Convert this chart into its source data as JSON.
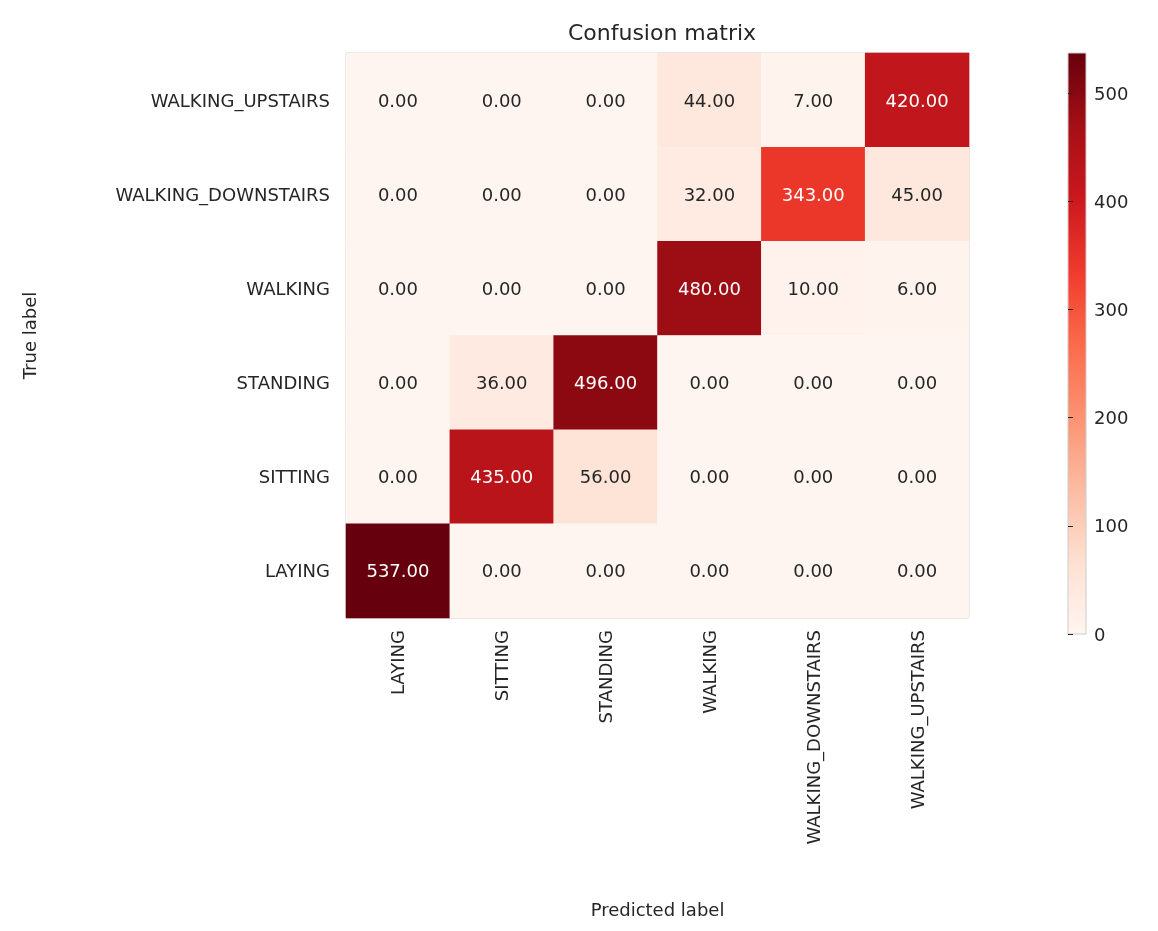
{
  "chart_data": {
    "type": "heatmap",
    "title": "Confusion matrix",
    "xlabel": "Predicted label",
    "ylabel": "True label",
    "categories": [
      "LAYING",
      "SITTING",
      "STANDING",
      "WALKING",
      "WALKING_DOWNSTAIRS",
      "WALKING_UPSTAIRS"
    ],
    "y_categories": [
      "WALKING_UPSTAIRS",
      "WALKING_DOWNSTAIRS",
      "WALKING",
      "STANDING",
      "SITTING",
      "LAYING"
    ],
    "cells": [
      [
        0,
        0,
        0,
        44,
        7,
        420
      ],
      [
        0,
        0,
        0,
        32,
        343,
        45
      ],
      [
        0,
        0,
        0,
        480,
        10,
        6
      ],
      [
        0,
        36,
        496,
        0,
        0,
        0
      ],
      [
        0,
        435,
        56,
        0,
        0,
        0
      ],
      [
        537,
        0,
        0,
        0,
        0,
        0
      ]
    ],
    "cell_labels": [
      [
        "0.00",
        "0.00",
        "0.00",
        "44.00",
        "7.00",
        "420.00"
      ],
      [
        "0.00",
        "0.00",
        "0.00",
        "32.00",
        "343.00",
        "45.00"
      ],
      [
        "0.00",
        "0.00",
        "0.00",
        "480.00",
        "10.00",
        "6.00"
      ],
      [
        "0.00",
        "36.00",
        "496.00",
        "0.00",
        "0.00",
        "0.00"
      ],
      [
        "0.00",
        "435.00",
        "56.00",
        "0.00",
        "0.00",
        "0.00"
      ],
      [
        "537.00",
        "0.00",
        "0.00",
        "0.00",
        "0.00",
        "0.00"
      ]
    ],
    "clim": [
      0,
      537
    ],
    "cticks": [
      0,
      100,
      200,
      300,
      400,
      500
    ]
  }
}
